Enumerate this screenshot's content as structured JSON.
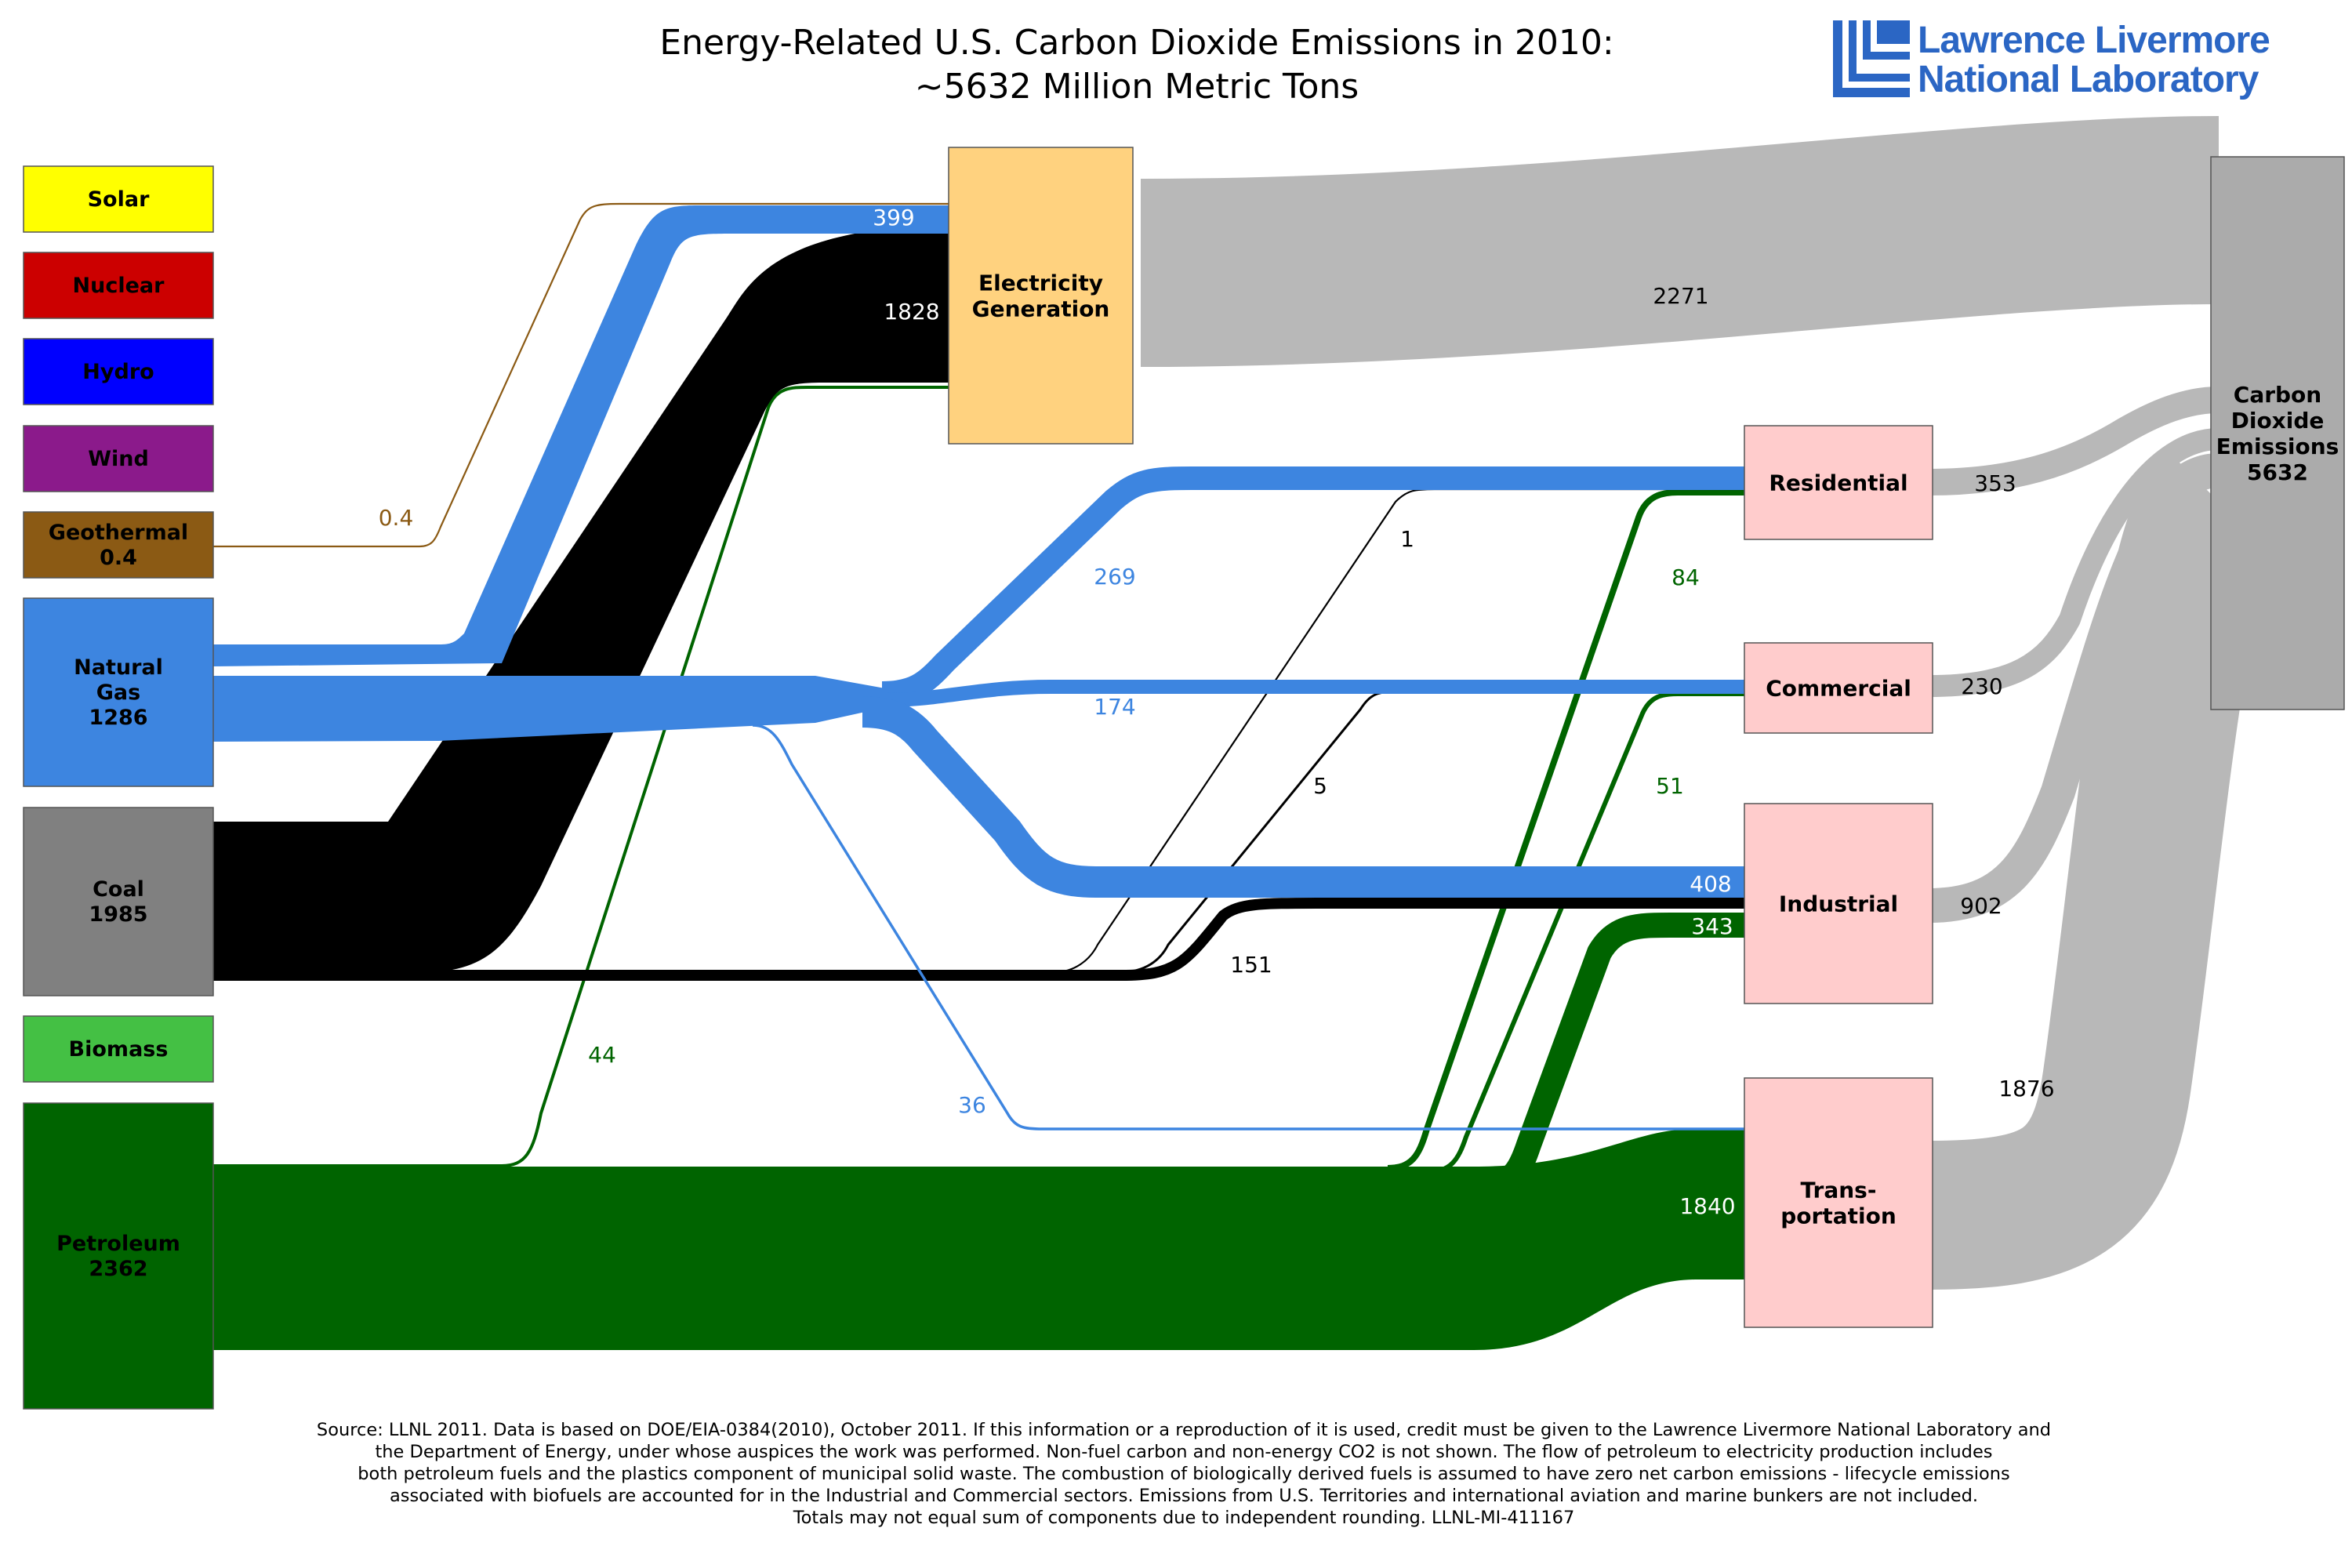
{
  "title": {
    "line1": "Energy-Related U.S. Carbon Dioxide Emissions in 2010:",
    "line2": "~5632 Million Metric Tons"
  },
  "logo": {
    "line1": "Lawrence Livermore",
    "line2": "National Laboratory",
    "color": "#2b66c4"
  },
  "colors": {
    "solar": "#ffff00",
    "nuclear": "#cc0000",
    "hydro": "#0000ff",
    "wind": "#8b1a8b",
    "geothermal": "#8b5a14",
    "natural_gas": "#3d85e0",
    "coal": "#000000",
    "coal_box": "#808080",
    "biomass": "#44c044",
    "petroleum": "#006400",
    "electricity": "#ffd27f",
    "sector": "#ffcccc",
    "emissions": "#b8b8b8",
    "emissions_box": "#ababab"
  },
  "sources": [
    {
      "key": "solar",
      "label": "Solar",
      "value": ""
    },
    {
      "key": "nuclear",
      "label": "Nuclear",
      "value": ""
    },
    {
      "key": "hydro",
      "label": "Hydro",
      "value": ""
    },
    {
      "key": "wind",
      "label": "Wind",
      "value": ""
    },
    {
      "key": "geothermal",
      "label": "Geothermal",
      "value": "0.4"
    },
    {
      "key": "natural_gas",
      "label": "Natural Gas",
      "value": "1286"
    },
    {
      "key": "coal",
      "label": "Coal",
      "value": "1985"
    },
    {
      "key": "biomass",
      "label": "Biomass",
      "value": ""
    },
    {
      "key": "petroleum",
      "label": "Petroleum",
      "value": "2362"
    }
  ],
  "sinks": {
    "electricity": {
      "label": "Electricity Generation"
    },
    "residential": {
      "label": "Residential"
    },
    "commercial": {
      "label": "Commercial"
    },
    "industrial": {
      "label": "Industrial"
    },
    "transportation": {
      "label": "Trans-portation"
    },
    "emissions": {
      "label": "Carbon Dioxide Emissions",
      "value": "5632"
    }
  },
  "flows": [
    {
      "from": "Geothermal",
      "to": "Electricity Generation",
      "value": "0.4"
    },
    {
      "from": "Natural Gas",
      "to": "Electricity Generation",
      "value": "399"
    },
    {
      "from": "Coal",
      "to": "Electricity Generation",
      "value": "1828"
    },
    {
      "from": "Petroleum",
      "to": "Electricity Generation",
      "value": "44"
    },
    {
      "from": "Electricity Generation",
      "to": "Carbon Dioxide Emissions",
      "value": "2271"
    },
    {
      "from": "Natural Gas",
      "to": "Residential",
      "value": "269"
    },
    {
      "from": "Natural Gas",
      "to": "Commercial",
      "value": "174"
    },
    {
      "from": "Natural Gas",
      "to": "Industrial",
      "value": "408"
    },
    {
      "from": "Natural Gas",
      "to": "Transportation",
      "value": "36"
    },
    {
      "from": "Coal",
      "to": "Residential",
      "value": "1"
    },
    {
      "from": "Coal",
      "to": "Commercial",
      "value": "5"
    },
    {
      "from": "Coal",
      "to": "Industrial",
      "value": "151"
    },
    {
      "from": "Petroleum",
      "to": "Residential",
      "value": "84"
    },
    {
      "from": "Petroleum",
      "to": "Commercial",
      "value": "51"
    },
    {
      "from": "Petroleum",
      "to": "Industrial",
      "value": "343"
    },
    {
      "from": "Petroleum",
      "to": "Transportation",
      "value": "1840"
    },
    {
      "from": "Residential",
      "to": "Carbon Dioxide Emissions",
      "value": "353"
    },
    {
      "from": "Commercial",
      "to": "Carbon Dioxide Emissions",
      "value": "230"
    },
    {
      "from": "Industrial",
      "to": "Carbon Dioxide Emissions",
      "value": "902"
    },
    {
      "from": "Transportation",
      "to": "Carbon Dioxide Emissions",
      "value": "1876"
    }
  ],
  "footnote": [
    "Source: LLNL 2011. Data is based on DOE/EIA-0384(2010), October 2011. If this information or a reproduction of it is used, credit must be given to the Lawrence Livermore National Laboratory and",
    "the Department of Energy, under whose auspices the work was performed.  Non-fuel carbon and non-energy CO2  is not shown.  The flow of petroleum to electricity production includes",
    "both petroleum fuels and the plastics component of municipal solid waste.  The combustion of biologically derived fuels is assumed to have zero net carbon emissions - lifecycle emissions",
    "associated with biofuels are accounted for in the Industrial and Commercial sectors. Emissions from U.S. Territories and international aviation and marine bunkers are not included.",
    "Totals may not equal sum of components due to independent rounding. LLNL-MI-411167"
  ]
}
